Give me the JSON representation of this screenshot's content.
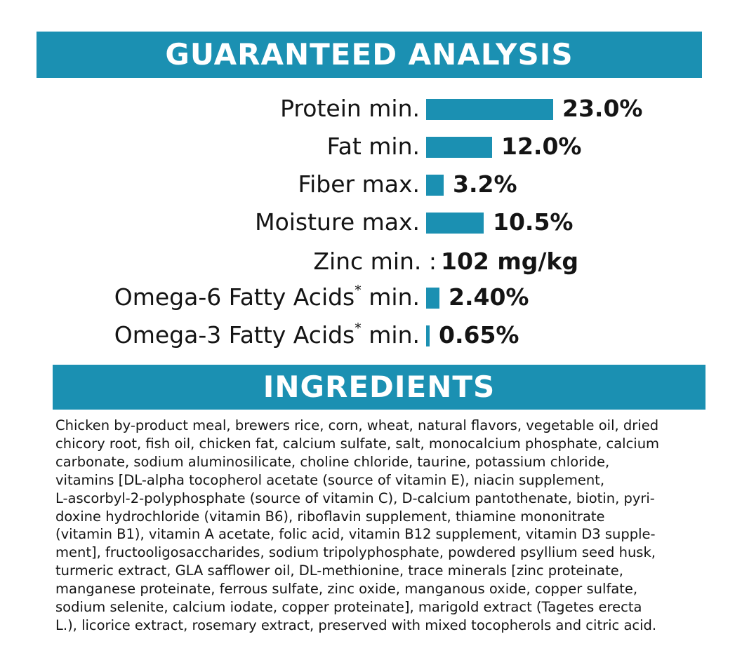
{
  "analysis": {
    "title": "GUARANTEED ANALYSIS",
    "rows": [
      {
        "label": "Protein min.",
        "value": "23.0%",
        "bar_percent": 23.0
      },
      {
        "label": "Fat min.",
        "value": "12.0%",
        "bar_percent": 12.0
      },
      {
        "label": "Fiber max.",
        "value": "3.2%",
        "bar_percent": 3.2
      },
      {
        "label": "Moisture max.",
        "value": "10.5%",
        "bar_percent": 10.5
      },
      {
        "label": "Zinc min. :",
        "value": "102 mg/kg"
      },
      {
        "label": "Omega-6 Fatty Acids",
        "asterisk": "*",
        "label_suffix": "min.",
        "value": "2.40%",
        "bar_percent": 2.4
      },
      {
        "label": "Omega-3 Fatty Acids",
        "asterisk": "*",
        "label_suffix": "min.",
        "value": "0.65%",
        "bar_percent": 0.65
      }
    ]
  },
  "ingredients": {
    "title": "INGREDIENTS",
    "lines": [
      "Chicken by-product meal, brewers rice, corn, wheat, natural flavors, vegetable oil, dried",
      "chicory root, fish oil, chicken fat, calcium sulfate, salt, monocalcium phosphate, calcium",
      "carbonate, sodium aluminosilicate, choline chloride, taurine, potassium chloride,",
      "vitamins [DL-alpha tocopherol acetate (source of vitamin E), niacin supplement,",
      "L-ascorbyl-2-polyphosphate (source of vitamin C), D-calcium pantothenate, biotin, pyri-",
      "doxine hydrochloride (vitamin B6), riboflavin supplement, thiamine mononitrate",
      "(vitamin B1), vitamin A acetate, folic acid, vitamin B12 supplement, vitamin D3 supple-",
      "ment], fructooligosaccharides, sodium tripolyphosphate, powdered psyllium seed husk,",
      "turmeric extract, GLA safflower oil, DL-methionine, trace minerals [zinc proteinate,",
      "manganese proteinate, ferrous sulfate, zinc oxide, manganous oxide, copper sulfate,",
      "sodium selenite, calcium iodate, copper proteinate], marigold extract (Tagetes erecta",
      "L.), licorice extract, rosemary extract, preserved with mixed tocopherols and citric acid."
    ]
  },
  "colors": {
    "accent": "#1b90b2",
    "text": "#141414",
    "background": "#ffffff"
  }
}
